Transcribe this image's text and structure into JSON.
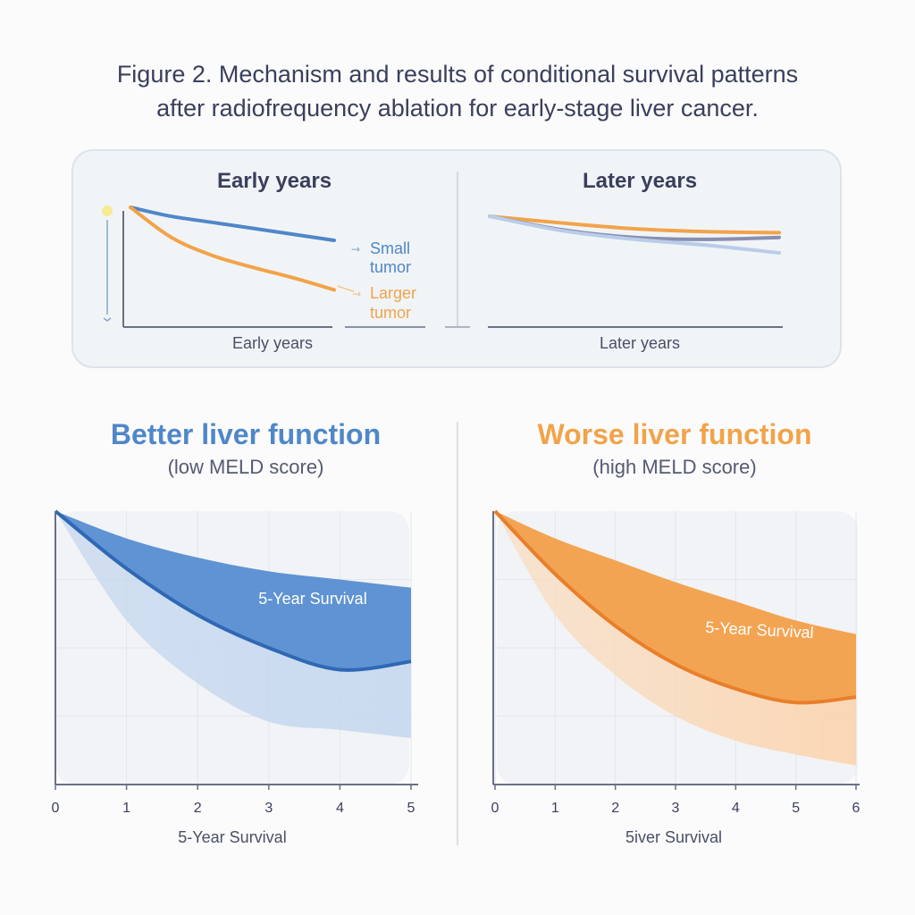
{
  "title_line1": "Figure 2. Mechanism and results of conditional survival patterns",
  "title_line2": "after radiofrequency ablation for early-stage liver cancer.",
  "top_panel": {
    "left_heading": "Early years",
    "right_heading": "Later years",
    "left_xlabel": "Early years",
    "right_xlabel": "Later years",
    "legend_small_1": "Small",
    "legend_small_2": "tumor",
    "legend_large_1": "Larger",
    "legend_large_2": "tumor"
  },
  "left_chart": {
    "title": "Better liver function",
    "subtitle": "(low MELD score)",
    "xlabel": "5-Year Survival",
    "annotation": "5-Year Survival"
  },
  "right_chart": {
    "title": "Worse liver function",
    "subtitle": "(high MELD score)",
    "xlabel": "5iver Survival",
    "annotation": "5-Year Survival"
  },
  "colors": {
    "blue": "#4f87c9",
    "orange": "#f2a34a",
    "grey": "#8a8fb0",
    "axis": "#6b7085"
  },
  "chart_data": [
    {
      "type": "line",
      "title": "Early years",
      "xlabel": "Early years",
      "ylabel": "",
      "series": [
        {
          "name": "Small tumor",
          "x": [
            0,
            0.2,
            0.4,
            0.6,
            0.8,
            1.0
          ],
          "values": [
            1.0,
            0.94,
            0.9,
            0.86,
            0.82,
            0.78
          ]
        },
        {
          "name": "Larger tumor",
          "x": [
            0,
            0.2,
            0.4,
            0.6,
            0.8,
            1.0
          ],
          "values": [
            1.0,
            0.8,
            0.68,
            0.6,
            0.53,
            0.45
          ]
        }
      ]
    },
    {
      "type": "line",
      "title": "Later years",
      "xlabel": "Later years",
      "ylabel": "",
      "series": [
        {
          "name": "Larger tumor",
          "x": [
            0,
            0.25,
            0.5,
            0.75,
            1.0
          ],
          "values": [
            1.0,
            0.93,
            0.87,
            0.84,
            0.83
          ]
        },
        {
          "name": "Small tumor",
          "x": [
            0,
            0.25,
            0.5,
            0.75,
            1.0
          ],
          "values": [
            1.0,
            0.86,
            0.78,
            0.76,
            0.78
          ]
        },
        {
          "name": "Small tumor (band)",
          "x": [
            0,
            0.25,
            0.5,
            0.75,
            1.0
          ],
          "values": [
            1.0,
            0.85,
            0.76,
            0.7,
            0.62
          ]
        }
      ]
    },
    {
      "type": "area",
      "title": "Better liver function (low MELD score)",
      "xlabel": "5-Year Survival",
      "ylabel": "",
      "x": [
        0,
        1,
        2,
        3,
        4,
        5
      ],
      "xlim": [
        0,
        5
      ],
      "ylim": [
        0,
        1
      ],
      "series": [
        {
          "name": "upper bound",
          "values": [
            1.0,
            0.9,
            0.83,
            0.78,
            0.75,
            0.72
          ]
        },
        {
          "name": "5-Year Survival",
          "values": [
            1.0,
            0.79,
            0.62,
            0.5,
            0.42,
            0.45
          ]
        },
        {
          "name": "lower bound",
          "values": [
            1.0,
            0.6,
            0.37,
            0.23,
            0.2,
            0.17
          ]
        }
      ]
    },
    {
      "type": "area",
      "title": "Worse liver function (high MELD score)",
      "xlabel": "5iver Survival",
      "ylabel": "",
      "x": [
        0,
        1,
        2,
        3,
        4,
        5,
        6
      ],
      "xlim": [
        0,
        6
      ],
      "ylim": [
        0,
        1
      ],
      "series": [
        {
          "name": "upper bound",
          "values": [
            1.0,
            0.9,
            0.82,
            0.74,
            0.67,
            0.6,
            0.55
          ]
        },
        {
          "name": "5-Year Survival",
          "values": [
            1.0,
            0.77,
            0.58,
            0.44,
            0.35,
            0.3,
            0.32
          ]
        },
        {
          "name": "lower bound",
          "values": [
            1.0,
            0.62,
            0.4,
            0.25,
            0.16,
            0.11,
            0.07
          ]
        }
      ]
    }
  ]
}
